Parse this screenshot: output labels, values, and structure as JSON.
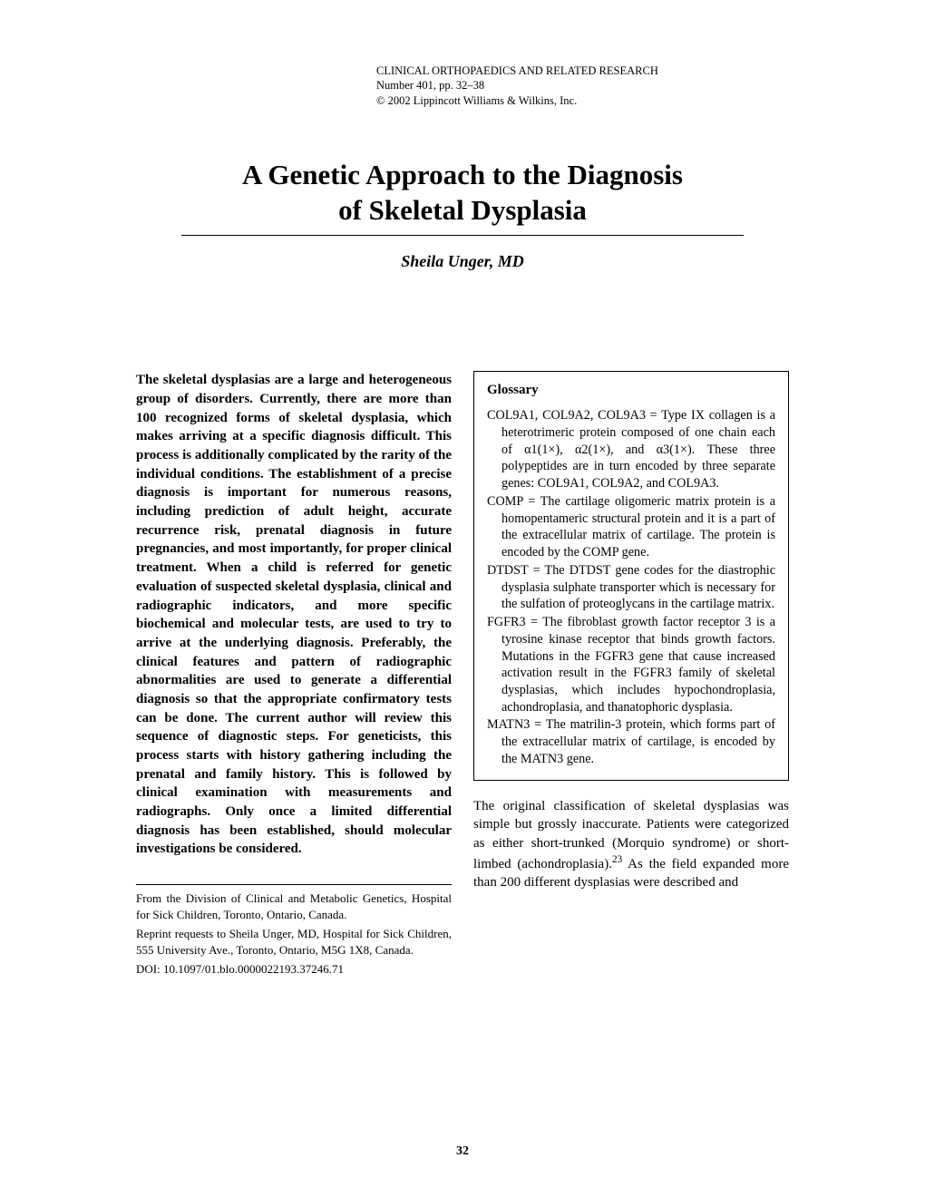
{
  "header": {
    "journal": "CLINICAL ORTHOPAEDICS AND RELATED RESEARCH",
    "issue": "Number 401, pp. 32–38",
    "copyright": "© 2002 Lippincott Williams & Wilkins, Inc."
  },
  "title_line1": "A Genetic Approach to the Diagnosis",
  "title_line2": "of Skeletal Dysplasia",
  "author": "Sheila Unger, MD",
  "abstract": "The skeletal dysplasias are a large and heterogeneous group of disorders. Currently, there are more than 100 recognized forms of skeletal dysplasia, which makes arriving at a specific diagnosis difficult. This process is additionally complicated by the rarity of the individual conditions. The establishment of a precise diagnosis is important for numerous reasons, including prediction of adult height, accurate recurrence risk, prenatal diagnosis in future pregnancies, and most importantly, for proper clinical treatment. When a child is referred for genetic evaluation of suspected skeletal dysplasia, clinical and radiographic indicators, and more specific biochemical and molecular tests, are used to try to arrive at the underlying diagnosis. Preferably, the clinical features and pattern of radiographic abnormalities are used to generate a differential diagnosis so that the appropriate confirmatory tests can be done. The current author will review this sequence of diagnostic steps. For geneticists, this process starts with history gathering including the prenatal and family history. This is followed by clinical examination with measurements and radiographs. Only once a limited differential diagnosis has been established, should molecular investigations be considered.",
  "footnotes": {
    "affiliation": "From the Division of Clinical and Metabolic Genetics, Hospital for Sick Children, Toronto, Ontario, Canada.",
    "reprint": "Reprint requests to Sheila Unger, MD, Hospital for Sick Children, 555 University Ave., Toronto, Ontario, M5G 1X8, Canada.",
    "doi": "DOI: 10.1097/01.blo.0000022193.37246.71"
  },
  "glossary": {
    "title": "Glossary",
    "items": [
      "COL9A1, COL9A2, COL9A3 = Type IX collagen is a heterotrimeric protein composed of one chain each of α1(1×), α2(1×), and α3(1×). These three polypeptides are in turn encoded by three separate genes: COL9A1, COL9A2, and COL9A3.",
      "COMP = The cartilage oligomeric matrix protein is a homopentameric structural protein and it is a part of the extracellular matrix of cartilage. The protein is encoded by the COMP gene.",
      "DTDST = The DTDST gene codes for the diastrophic dysplasia sulphate transporter which is necessary for the sulfation of proteoglycans in the cartilage matrix.",
      "FGFR3 = The fibroblast growth factor receptor 3 is a tyrosine kinase receptor that binds growth factors. Mutations in the FGFR3 gene that cause increased activation result in the FGFR3 family of skeletal dysplasias, which includes hypochondroplasia, achondroplasia, and thanatophoric dysplasia.",
      "MATN3 = The matrilin-3 protein, which forms part of the extracellular matrix of cartilage, is encoded by the MATN3 gene."
    ]
  },
  "body_para_pre": "The original classification of skeletal dysplasias was simple but grossly inaccurate. Patients were categorized as either short-trunked (Morquio syndrome) or short-limbed (achondroplasia).",
  "body_para_cite": "23",
  "body_para_post": " As the field expanded more than 200 different dysplasias were described and",
  "page_number": "32"
}
